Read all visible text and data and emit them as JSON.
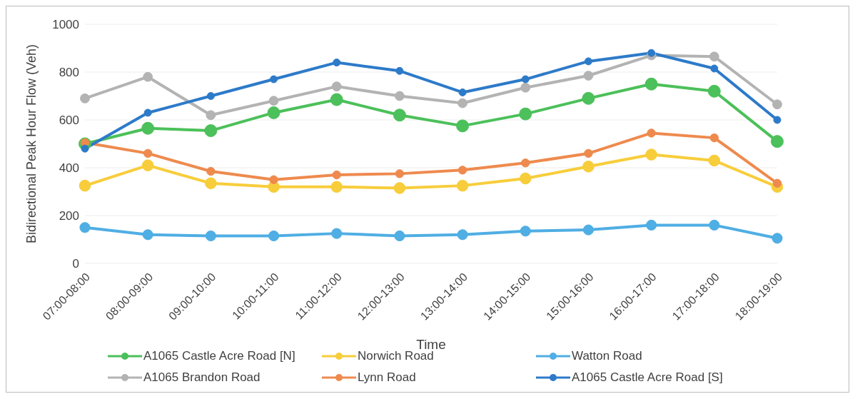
{
  "chart_data": {
    "type": "line",
    "xlabel": "Time",
    "ylabel": "Bidirectional Peak Hour Flow (Veh)",
    "categories": [
      "07:00-08:00",
      "08:00-09:00",
      "09:00-10:00",
      "10:00-11:00",
      "11:00-12:00",
      "12:00-13:00",
      "13:00-14:00",
      "14:00-15:00",
      "15:00-16:00",
      "16:00-17:00",
      "17:00-18:00",
      "18:00-19:00"
    ],
    "series": [
      {
        "name": "A1065 Castle Acre Road [N]",
        "color": "#4cc05a",
        "values": [
          500,
          565,
          555,
          630,
          685,
          620,
          575,
          625,
          690,
          750,
          720,
          510
        ]
      },
      {
        "name": "Norwich Road",
        "color": "#f7cd3b",
        "values": [
          325,
          410,
          335,
          320,
          320,
          315,
          325,
          355,
          405,
          455,
          430,
          320
        ]
      },
      {
        "name": "Watton Road",
        "color": "#4faee3",
        "values": [
          150,
          120,
          115,
          115,
          125,
          115,
          120,
          135,
          140,
          160,
          160,
          105
        ]
      },
      {
        "name": "A1065 Brandon Road",
        "color": "#b3b3b3",
        "values": [
          690,
          780,
          620,
          680,
          740,
          700,
          670,
          735,
          785,
          870,
          865,
          665
        ]
      },
      {
        "name": "Lynn Road",
        "color": "#ee8a4e",
        "values": [
          505,
          460,
          385,
          350,
          370,
          375,
          390,
          420,
          460,
          545,
          525,
          335
        ]
      },
      {
        "name": "A1065 Castle Acre Road [S]",
        "color": "#2d7ac9",
        "values": [
          480,
          630,
          700,
          770,
          840,
          805,
          715,
          770,
          845,
          880,
          815,
          600
        ]
      }
    ],
    "ylim": [
      0,
      1000
    ],
    "yticks": [
      0,
      200,
      400,
      600,
      800,
      1000
    ],
    "grid": "y",
    "legend": "bottom",
    "marker": "circle",
    "line_style": "solid"
  }
}
